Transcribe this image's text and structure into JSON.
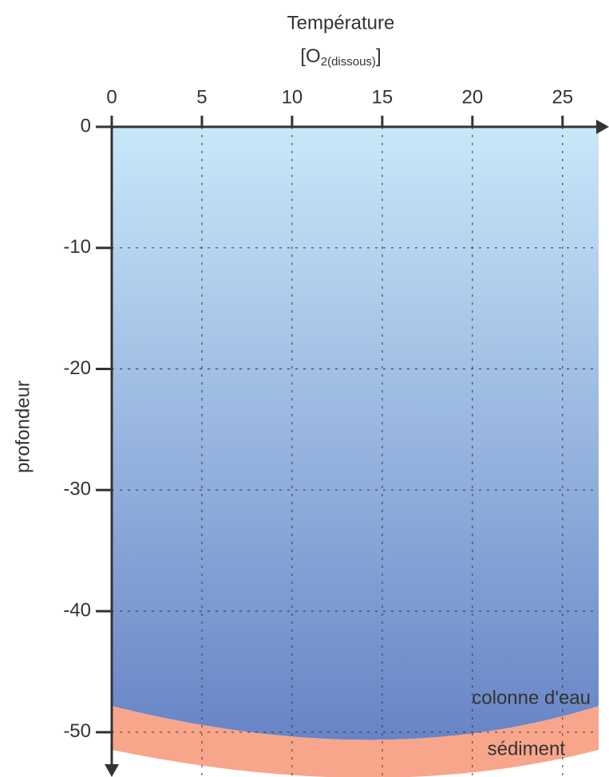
{
  "chart_data": {
    "type": "profile",
    "title": "Température",
    "subtitle": {
      "open": "[O",
      "sub": "2(dissous)",
      "close": "]"
    },
    "ylabel": "profondeur",
    "xlim": [
      0,
      27
    ],
    "xticks": [
      0,
      5,
      10,
      15,
      20,
      25
    ],
    "ylim": [
      -53.7,
      0
    ],
    "yticks": [
      0,
      -10,
      -20,
      -30,
      -40,
      -50
    ],
    "grid": true,
    "annotations": [
      "colonne d'eau",
      "sédiment"
    ]
  }
}
